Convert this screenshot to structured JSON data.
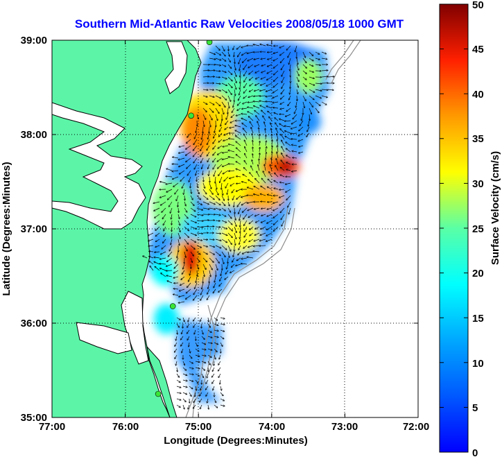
{
  "chart_data": {
    "type": "heatmap",
    "title": "Southern Mid-Atlantic Raw Velocities 2008/05/18 1000 GMT",
    "xlabel": "Longitude (Degrees:Minutes)",
    "ylabel": "Latitude (Degrees:Minutes)",
    "x_ticks": [
      "77:00",
      "76:00",
      "75:00",
      "74:00",
      "73:00",
      "72:00"
    ],
    "y_ticks": [
      "35:00",
      "36:00",
      "37:00",
      "38:00",
      "39:00"
    ],
    "xlim": [
      -77,
      -72
    ],
    "ylim": [
      35,
      39
    ],
    "grid": true,
    "colorbar": {
      "label": "Surface Velocity (cm/s)",
      "range": [
        0,
        50
      ],
      "ticks": [
        "0",
        "5",
        "10",
        "15",
        "20",
        "25",
        "30",
        "35",
        "40",
        "45",
        "50"
      ],
      "colormap": "jet"
    },
    "hotspots": [
      {
        "lon": -73.85,
        "lat": 37.65,
        "speed": 48
      },
      {
        "lon": -75.05,
        "lat": 36.55,
        "speed": 50
      },
      {
        "lon": -75.55,
        "lat": 37.95,
        "speed": 38
      },
      {
        "lon": -74.15,
        "lat": 37.25,
        "speed": 32
      },
      {
        "lon": -75.35,
        "lat": 36.95,
        "speed": 28
      }
    ],
    "stations": [
      {
        "lon": -74.85,
        "lat": 38.98
      },
      {
        "lon": -75.1,
        "lat": 38.2
      },
      {
        "lon": -75.35,
        "lat": 36.18
      },
      {
        "lon": -75.55,
        "lat": 35.25
      }
    ]
  },
  "colors": {
    "land": "#5cf5a8",
    "coast": "#000000",
    "bathymetry": "#8c8c8c",
    "title": "#0000ff",
    "station": "#39e639"
  }
}
